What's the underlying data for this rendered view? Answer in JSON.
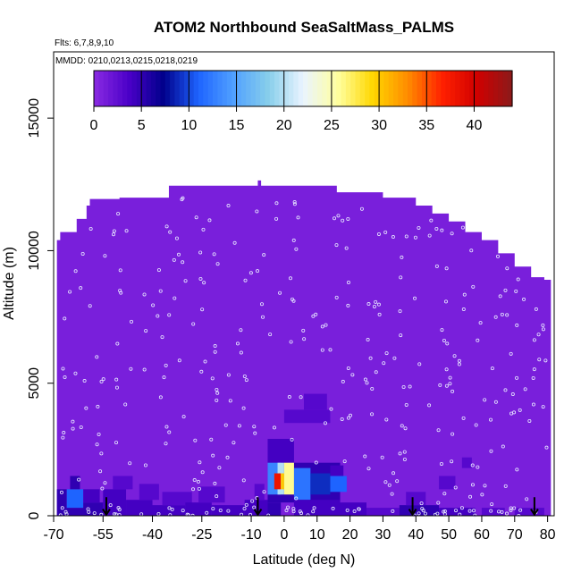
{
  "chart_data": {
    "type": "heatmap",
    "title": "ATOM2 Northbound SeaSaltMass_PALMS",
    "flights_note": "Flts: 6,7,8,9,10",
    "dates_note": "MMDD: 0210,0213,0215,0218,0219",
    "xlabel": "Latitude (deg N)",
    "ylabel": "Altitude (m)",
    "xlim": [
      -70,
      82
    ],
    "ylim": [
      0,
      17500
    ],
    "x_ticks": [
      -70,
      -55,
      -40,
      -25,
      -10,
      0,
      10,
      20,
      30,
      40,
      50,
      60,
      70,
      80
    ],
    "x_tick_labels": [
      "-70",
      "-55",
      "-40",
      "-25",
      "-10",
      "0",
      "10",
      "20",
      "30",
      "40",
      "50",
      "60",
      "70",
      "80"
    ],
    "y_ticks": [
      0,
      5000,
      10000,
      15000
    ],
    "y_tick_labels": [
      "0",
      "5000",
      "10000",
      "15000"
    ],
    "colorbar": {
      "range": [
        0,
        44
      ],
      "ticks": [
        0,
        5,
        10,
        15,
        20,
        25,
        30,
        35,
        40
      ],
      "tick_labels": [
        "0",
        "5",
        "10",
        "15",
        "20",
        "25",
        "30",
        "35",
        "40"
      ],
      "colors": [
        "#8a2be2",
        "#4b00c8",
        "#00008b",
        "#1e64ff",
        "#50a0ff",
        "#87ceeb",
        "#eaf4ff",
        "#ffffa0",
        "#ffd700",
        "#ff8c00",
        "#ff2000",
        "#d00000",
        "#8b1a1a"
      ]
    },
    "background_value": 1,
    "ceiling_profile": [
      {
        "lat": -69,
        "alt": 10400
      },
      {
        "lat": -68,
        "alt": 10700
      },
      {
        "lat": -63,
        "alt": 11200
      },
      {
        "lat": -60,
        "alt": 11700
      },
      {
        "lat": -59,
        "alt": 11950
      },
      {
        "lat": -50,
        "alt": 12000
      },
      {
        "lat": -45,
        "alt": 12000
      },
      {
        "lat": -36,
        "alt": 12000
      },
      {
        "lat": -35,
        "alt": 12450
      },
      {
        "lat": -10,
        "alt": 12450
      },
      {
        "lat": -8,
        "alt": 12650
      },
      {
        "lat": -7,
        "alt": 12450
      },
      {
        "lat": 15,
        "alt": 12450
      },
      {
        "lat": 16,
        "alt": 12200
      },
      {
        "lat": 30,
        "alt": 12000
      },
      {
        "lat": 40,
        "alt": 11700
      },
      {
        "lat": 45,
        "alt": 11400
      },
      {
        "lat": 50,
        "alt": 11100
      },
      {
        "lat": 55,
        "alt": 10700
      },
      {
        "lat": 60,
        "alt": 10400
      },
      {
        "lat": 65,
        "alt": 9900
      },
      {
        "lat": 70,
        "alt": 9400
      },
      {
        "lat": 75,
        "alt": 9000
      },
      {
        "lat": 79,
        "alt": 8900
      },
      {
        "lat": 81,
        "alt": 8900
      }
    ],
    "cells": [
      {
        "lat0": -69,
        "lat1": -66,
        "alt0": 0,
        "alt1": 1000,
        "value": 5
      },
      {
        "lat0": -66,
        "lat1": -60,
        "alt0": 0,
        "alt1": 300,
        "value": 5
      },
      {
        "lat0": -66,
        "lat1": -61,
        "alt0": 300,
        "alt1": 1000,
        "value": 11
      },
      {
        "lat0": -65,
        "lat1": -62,
        "alt0": 1000,
        "alt1": 1500,
        "value": 5
      },
      {
        "lat0": -61,
        "lat1": -55,
        "alt0": 0,
        "alt1": 500,
        "value": 5
      },
      {
        "lat0": -61,
        "lat1": -56,
        "alt0": 500,
        "alt1": 1000,
        "value": 4
      },
      {
        "lat0": -55,
        "lat1": -48,
        "alt0": 0,
        "alt1": 1000,
        "value": 4
      },
      {
        "lat0": -52,
        "lat1": -46,
        "alt0": 1000,
        "alt1": 1500,
        "value": 3
      },
      {
        "lat0": -48,
        "lat1": -40,
        "alt0": 0,
        "alt1": 600,
        "value": 4
      },
      {
        "lat0": -44,
        "lat1": -38,
        "alt0": 600,
        "alt1": 1200,
        "value": 3
      },
      {
        "lat0": -40,
        "lat1": -30,
        "alt0": 0,
        "alt1": 400,
        "value": 4
      },
      {
        "lat0": -37,
        "lat1": -28,
        "alt0": 400,
        "alt1": 900,
        "value": 3
      },
      {
        "lat0": -30,
        "lat1": -22,
        "alt0": 0,
        "alt1": 500,
        "value": 4
      },
      {
        "lat0": -26,
        "lat1": -18,
        "alt0": 500,
        "alt1": 1100,
        "value": 3
      },
      {
        "lat0": -22,
        "lat1": -12,
        "alt0": 0,
        "alt1": 400,
        "value": 4
      },
      {
        "lat0": -12,
        "lat1": -5,
        "alt0": 0,
        "alt1": 600,
        "value": 4
      },
      {
        "lat0": -9,
        "lat1": -6,
        "alt0": 600,
        "alt1": 1200,
        "value": 3
      },
      {
        "lat0": -5,
        "lat1": -1,
        "alt0": 0,
        "alt1": 500,
        "value": 5
      },
      {
        "lat0": -5,
        "lat1": 17,
        "alt0": 500,
        "alt1": 2000,
        "value": 5
      },
      {
        "lat0": -5,
        "lat1": 3,
        "alt0": 2000,
        "alt1": 2900,
        "value": 4
      },
      {
        "lat0": -5,
        "lat1": -1,
        "alt0": 800,
        "alt1": 2000,
        "value": 13
      },
      {
        "lat0": -2,
        "lat1": 0,
        "alt0": 800,
        "alt1": 2000,
        "value": 20
      },
      {
        "lat0": 0,
        "lat1": 3,
        "alt0": 800,
        "alt1": 2000,
        "value": 26
      },
      {
        "lat0": -3,
        "lat1": -1,
        "alt0": 1000,
        "alt1": 1600,
        "value": 38
      },
      {
        "lat0": -1,
        "lat1": 0,
        "alt0": 1000,
        "alt1": 1600,
        "value": 30
      },
      {
        "lat0": 3,
        "lat1": 8,
        "alt0": 600,
        "alt1": 1800,
        "value": 12
      },
      {
        "lat0": 8,
        "lat1": 14,
        "alt0": 800,
        "alt1": 1600,
        "value": 9
      },
      {
        "lat0": 14,
        "lat1": 19,
        "alt0": 900,
        "alt1": 1500,
        "value": 11
      },
      {
        "lat0": 14,
        "lat1": 18,
        "alt0": 1500,
        "alt1": 1900,
        "value": 4
      },
      {
        "lat0": 0,
        "lat1": 14,
        "alt0": 3500,
        "alt1": 4000,
        "value": 3
      },
      {
        "lat0": 6,
        "lat1": 13,
        "alt0": 4000,
        "alt1": 4600,
        "value": 3
      },
      {
        "lat0": 3,
        "lat1": 17,
        "alt0": 0,
        "alt1": 600,
        "value": 4
      },
      {
        "lat0": 17,
        "lat1": 25,
        "alt0": 0,
        "alt1": 500,
        "value": 4
      },
      {
        "lat0": 25,
        "lat1": 35,
        "alt0": 0,
        "alt1": 300,
        "value": 3
      },
      {
        "lat0": 35,
        "lat1": 47,
        "alt0": 0,
        "alt1": 400,
        "value": 5
      },
      {
        "lat0": 37,
        "lat1": 43,
        "alt0": 400,
        "alt1": 900,
        "value": 3
      },
      {
        "lat0": 47,
        "lat1": 52,
        "alt0": 1000,
        "alt1": 1500,
        "value": 3
      },
      {
        "lat0": 54,
        "lat1": 57,
        "alt0": 1800,
        "alt1": 2200,
        "value": 3
      },
      {
        "lat0": 47,
        "lat1": 58,
        "alt0": 0,
        "alt1": 300,
        "value": 4
      },
      {
        "lat0": 60,
        "lat1": 67,
        "alt0": 0,
        "alt1": 300,
        "value": 3
      },
      {
        "lat0": 70,
        "lat1": 79,
        "alt0": 0,
        "alt1": 300,
        "value": 3
      }
    ],
    "arrows_lat": [
      -54,
      -8,
      39,
      76
    ],
    "sample_points": {
      "count": 380,
      "color": "#e6e6ff"
    }
  }
}
